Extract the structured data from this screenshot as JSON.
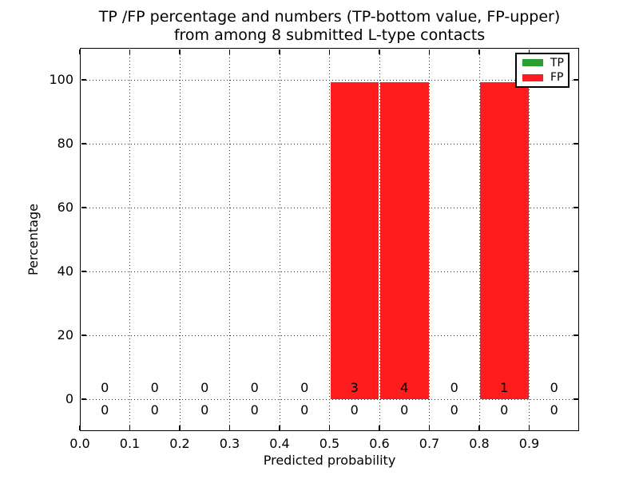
{
  "title": {
    "line1": "TP /FP percentage and numbers (TP-bottom value, FP-upper)",
    "line2": "from among 8 submitted L-type contacts"
  },
  "axes": {
    "x_label": "Predicted probability",
    "y_label": "Percentage"
  },
  "legend": {
    "items": [
      {
        "label": "TP",
        "color": "#2ca02c"
      },
      {
        "label": "FP",
        "color": "#ff1c1c"
      }
    ]
  },
  "chart_data": {
    "type": "bar",
    "stacked": true,
    "title": "TP /FP percentage and numbers (TP-bottom value, FP-upper) from among 8 submitted L-type contacts",
    "xlabel": "Predicted probability",
    "ylabel": "Percentage",
    "xlim": [
      0.0,
      1.0
    ],
    "ylim": [
      -10,
      110
    ],
    "grid": true,
    "legend_position": "upper right",
    "total_submitted_contacts": 8,
    "x_tick_labels": [
      "0.0",
      "0.1",
      "0.2",
      "0.3",
      "0.4",
      "0.5",
      "0.6",
      "0.7",
      "0.8",
      "0.9"
    ],
    "y_tick_values": [
      0,
      20,
      40,
      60,
      80,
      100
    ],
    "bin_edges": [
      0.0,
      0.1,
      0.2,
      0.3,
      0.4,
      0.5,
      0.6,
      0.7,
      0.8,
      0.9,
      1.0
    ],
    "series": [
      {
        "name": "TP",
        "color": "#2ca02c",
        "percent_values": [
          0,
          0,
          0,
          0,
          0,
          0,
          0,
          0,
          0,
          0
        ],
        "counts": [
          0,
          0,
          0,
          0,
          0,
          0,
          0,
          0,
          0,
          0
        ],
        "count_label_row": "bottom"
      },
      {
        "name": "FP",
        "color": "#ff1c1c",
        "percent_values": [
          0,
          0,
          0,
          0,
          0,
          100,
          100,
          0,
          100,
          0
        ],
        "counts": [
          0,
          0,
          0,
          0,
          0,
          3,
          4,
          0,
          1,
          0
        ],
        "count_label_row": "top"
      }
    ]
  }
}
